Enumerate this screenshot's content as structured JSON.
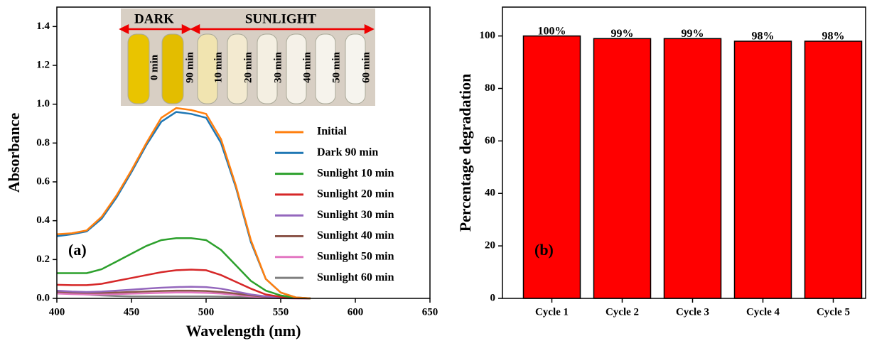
{
  "chart_data": [
    {
      "type": "line",
      "xlabel": "Wavelength (nm)",
      "ylabel": "Absorbance",
      "panel_label": "(a)",
      "inset_headers": [
        "DARK",
        "SUNLIGHT"
      ],
      "inset_tube_labels": [
        "0 min",
        "90 min",
        "10 min",
        "20 min",
        "30 min",
        "40 min",
        "50 min",
        "60 min"
      ],
      "x": [
        400,
        410,
        420,
        430,
        440,
        450,
        460,
        470,
        480,
        490,
        500,
        510,
        520,
        530,
        540,
        550,
        560,
        570
      ],
      "series": [
        {
          "name": "Initial",
          "color": "#ff7f0e",
          "values": [
            0.33,
            0.335,
            0.35,
            0.42,
            0.53,
            0.66,
            0.8,
            0.93,
            0.98,
            0.97,
            0.95,
            0.82,
            0.58,
            0.3,
            0.1,
            0.03,
            0.005,
            0
          ]
        },
        {
          "name": "Dark 90 min",
          "color": "#1f77b4",
          "values": [
            0.32,
            0.33,
            0.345,
            0.41,
            0.52,
            0.65,
            0.79,
            0.91,
            0.96,
            0.95,
            0.93,
            0.8,
            0.57,
            0.29,
            0.1,
            0.03,
            0.005,
            0
          ]
        },
        {
          "name": "Sunlight 10 min",
          "color": "#2ca02c",
          "values": [
            0.13,
            0.13,
            0.13,
            0.15,
            0.19,
            0.23,
            0.27,
            0.3,
            0.31,
            0.31,
            0.3,
            0.25,
            0.17,
            0.09,
            0.04,
            0.015,
            0.003,
            0
          ]
        },
        {
          "name": "Sunlight 20 min",
          "color": "#d62728",
          "values": [
            0.07,
            0.068,
            0.068,
            0.075,
            0.09,
            0.105,
            0.12,
            0.135,
            0.145,
            0.148,
            0.145,
            0.12,
            0.085,
            0.05,
            0.02,
            0.008,
            0.002,
            0
          ]
        },
        {
          "name": "Sunlight 30 min",
          "color": "#9467bd",
          "values": [
            0.04,
            0.035,
            0.033,
            0.035,
            0.04,
            0.045,
            0.05,
            0.055,
            0.058,
            0.06,
            0.058,
            0.05,
            0.035,
            0.02,
            0.01,
            0.004,
            0.001,
            0
          ]
        },
        {
          "name": "Sunlight 40 min",
          "color": "#8c564b",
          "values": [
            0.035,
            0.03,
            0.028,
            0.028,
            0.03,
            0.033,
            0.036,
            0.038,
            0.04,
            0.04,
            0.038,
            0.033,
            0.025,
            0.015,
            0.008,
            0.003,
            0.001,
            0
          ]
        },
        {
          "name": "Sunlight 50 min",
          "color": "#e377c2",
          "values": [
            0.025,
            0.022,
            0.02,
            0.02,
            0.022,
            0.024,
            0.026,
            0.028,
            0.03,
            0.03,
            0.028,
            0.025,
            0.018,
            0.01,
            0.005,
            0.002,
            0,
            0
          ]
        },
        {
          "name": "Sunlight 60 min",
          "color": "#7f7f7f",
          "values": [
            0.03,
            0.025,
            0.02,
            0.015,
            0.012,
            0.01,
            0.01,
            0.01,
            0.01,
            0.01,
            0.01,
            0.009,
            0.007,
            0.005,
            0.003,
            0.001,
            0,
            0
          ]
        }
      ],
      "xlim": [
        400,
        650
      ],
      "xticks": [
        400,
        450,
        500,
        550,
        600,
        650
      ],
      "ylim": [
        0,
        1.5
      ],
      "yticks": [
        {
          "value": 0,
          "label": "0.0"
        },
        0.2,
        0.4,
        0.6,
        0.8,
        {
          "value": 1,
          "label": "1.0"
        },
        1.2,
        1.4
      ]
    },
    {
      "type": "bar",
      "ylabel": "Percentage degradation",
      "panel_label": "(b)",
      "categories": [
        "Cycle 1",
        "Cycle 2",
        "Cycle 3",
        "Cycle 4",
        "Cycle 5"
      ],
      "values": [
        100,
        99,
        99,
        98,
        98
      ],
      "value_labels": [
        "100%",
        "99%",
        "99%",
        "98%",
        "98%"
      ],
      "color": "#ff0000",
      "edgecolor": "#000000",
      "ylim": [
        0,
        111
      ],
      "yticks": [
        0,
        20,
        40,
        60,
        80,
        100
      ]
    }
  ]
}
